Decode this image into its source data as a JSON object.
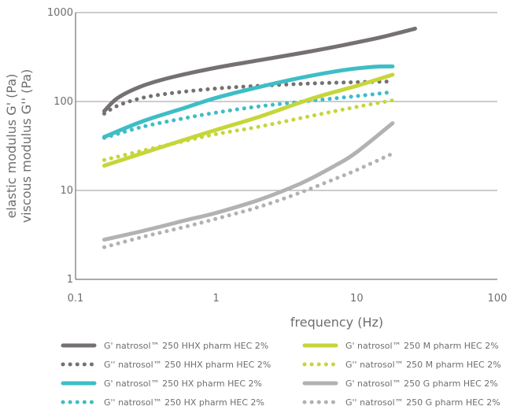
{
  "chart_data": {
    "type": "line",
    "title": "",
    "xlabel": "frequency (Hz)",
    "ylabel_lines": [
      "elastic modulus G' (Pa)",
      "viscous modulus G'' (Pa)"
    ],
    "x_scale": "log",
    "y_scale": "log",
    "xlim": [
      0.1,
      100
    ],
    "ylim": [
      1,
      1000
    ],
    "x_ticks": [
      {
        "value": 0.1,
        "label": "0.1"
      },
      {
        "value": 1,
        "label": "1"
      },
      {
        "value": 10,
        "label": "10"
      },
      {
        "value": 100,
        "label": "100"
      }
    ],
    "y_ticks": [
      {
        "value": 1,
        "label": "1"
      },
      {
        "value": 10,
        "label": "10"
      },
      {
        "value": 100,
        "label": "100"
      },
      {
        "value": 1000,
        "label": "1000"
      }
    ],
    "grid": "horizontal",
    "legend_position": "bottom",
    "series": [
      {
        "name": "G' natrosol™ 250 HHX pharm HEC 2%",
        "color": "#767171",
        "dash": "solid",
        "points": [
          [
            0.16,
            78
          ],
          [
            0.2,
            110
          ],
          [
            0.3,
            150
          ],
          [
            0.5,
            190
          ],
          [
            1,
            240
          ],
          [
            2,
            290
          ],
          [
            4,
            350
          ],
          [
            8,
            430
          ],
          [
            15,
            530
          ],
          [
            26,
            660
          ]
        ]
      },
      {
        "name": "G'' natrosol™ 250 HHX pharm HEC 2%",
        "color": "#767171",
        "dash": "dotted",
        "points": [
          [
            0.16,
            73
          ],
          [
            0.2,
            90
          ],
          [
            0.3,
            110
          ],
          [
            0.5,
            125
          ],
          [
            1,
            140
          ],
          [
            2,
            150
          ],
          [
            5,
            160
          ],
          [
            10,
            165
          ],
          [
            18,
            168
          ]
        ]
      },
      {
        "name": "G' natrosol™ 250 HX pharm HEC 2%",
        "color": "#3ebdc6",
        "dash": "solid",
        "points": [
          [
            0.16,
            40
          ],
          [
            0.3,
            60
          ],
          [
            0.6,
            85
          ],
          [
            1,
            110
          ],
          [
            2,
            145
          ],
          [
            4,
            185
          ],
          [
            8,
            225
          ],
          [
            13,
            245
          ],
          [
            18,
            248
          ]
        ]
      },
      {
        "name": "G'' natrosol™ 250 HX pharm HEC 2%",
        "color": "#3ebdc6",
        "dash": "dotted",
        "points": [
          [
            0.16,
            39
          ],
          [
            0.3,
            52
          ],
          [
            0.6,
            65
          ],
          [
            1,
            75
          ],
          [
            2,
            88
          ],
          [
            5,
            103
          ],
          [
            10,
            115
          ],
          [
            18,
            128
          ]
        ]
      },
      {
        "name": "G' natrosol™ 250 M pharm HEC 2%",
        "color": "#c6d63a",
        "dash": "solid",
        "points": [
          [
            0.16,
            19
          ],
          [
            0.5,
            34
          ],
          [
            1,
            48
          ],
          [
            2,
            67
          ],
          [
            5,
            110
          ],
          [
            10,
            150
          ],
          [
            18,
            200
          ]
        ]
      },
      {
        "name": "G'' natrosol™ 250 M pharm HEC 2%",
        "color": "#c6d63a",
        "dash": "dotted",
        "points": [
          [
            0.16,
            22
          ],
          [
            0.3,
            28
          ],
          [
            0.6,
            36
          ],
          [
            1,
            43
          ],
          [
            2,
            52
          ],
          [
            5,
            70
          ],
          [
            10,
            87
          ],
          [
            18,
            103
          ]
        ]
      },
      {
        "name": "G' natrosol™ 250 G pharm HEC 2%",
        "color": "#b2b2b2",
        "dash": "solid",
        "points": [
          [
            0.16,
            2.8
          ],
          [
            0.3,
            3.5
          ],
          [
            0.6,
            4.6
          ],
          [
            1,
            5.6
          ],
          [
            2,
            7.8
          ],
          [
            4,
            12
          ],
          [
            7,
            19
          ],
          [
            10,
            27
          ],
          [
            18,
            57
          ]
        ]
      },
      {
        "name": "G'' natrosol™ 250 G pharm HEC 2%",
        "color": "#b2b2b2",
        "dash": "dotted",
        "points": [
          [
            0.16,
            2.3
          ],
          [
            0.3,
            3.0
          ],
          [
            0.6,
            3.9
          ],
          [
            1,
            4.8
          ],
          [
            2,
            6.5
          ],
          [
            4,
            9.5
          ],
          [
            7,
            13.5
          ],
          [
            10,
            17
          ],
          [
            18,
            26
          ]
        ]
      }
    ]
  }
}
